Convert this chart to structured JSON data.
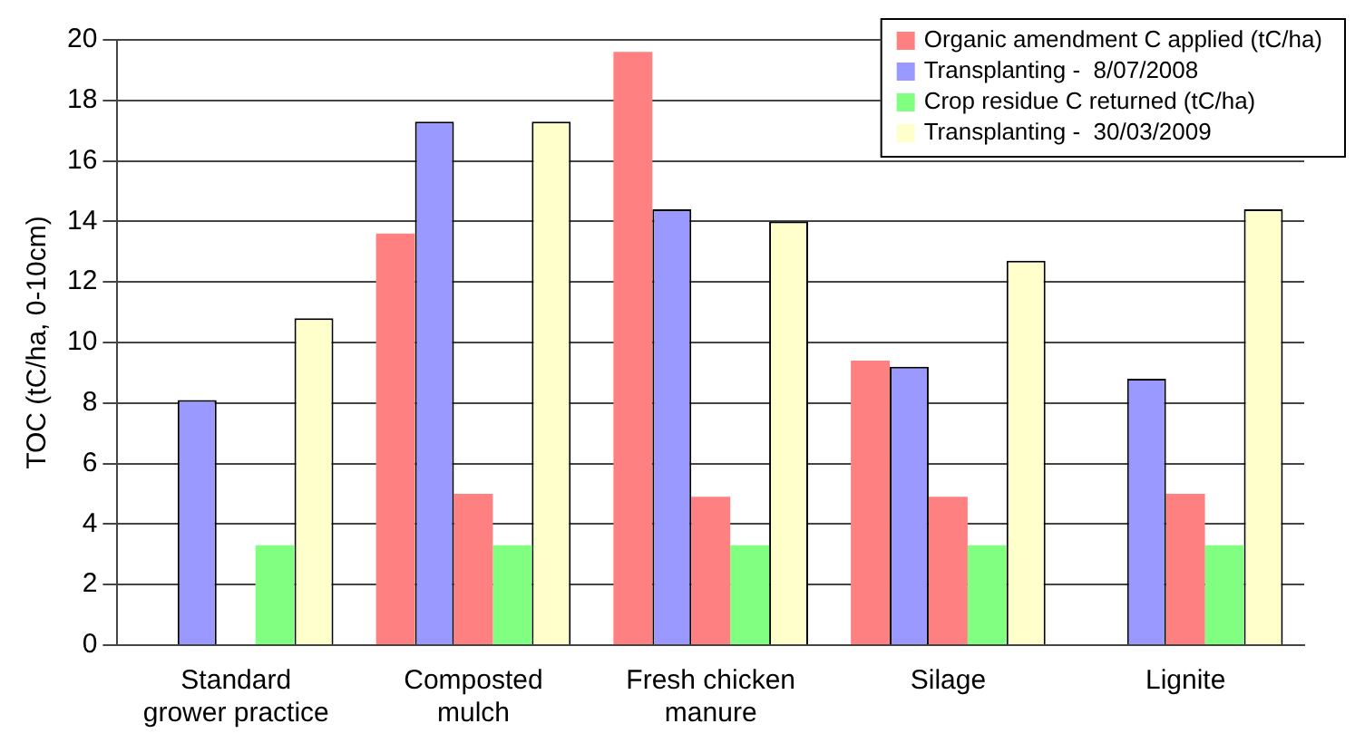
{
  "chart_data": {
    "type": "bar",
    "ylabel": "TOC (tC/ha, 0-10cm)",
    "categories": [
      "Standard grower practice",
      "Composted mulch",
      "Fresh chicken manure",
      "Silage",
      "Lignite"
    ],
    "series": [
      {
        "name": "Organic amendment C applied (tC/ha)",
        "color": "#ff8080",
        "values": [
          null,
          13.6,
          19.6,
          9.4,
          null
        ]
      },
      {
        "name": "Transplanting -  8/07/2008",
        "color": "#9999ff",
        "values": [
          8.1,
          17.3,
          14.4,
          9.2,
          8.8
        ]
      },
      {
        "color": "#ff8080",
        "values": [
          null,
          5.0,
          4.9,
          4.9,
          5.0
        ]
      },
      {
        "name": "Crop residue C returned (tC/ha)",
        "color": "#80ff80",
        "values": [
          3.3,
          3.3,
          3.3,
          3.3,
          3.3
        ]
      },
      {
        "name": "Transplanting -  30/03/2009",
        "color": "#ffffcc",
        "values": [
          10.8,
          17.3,
          14.0,
          12.7,
          14.4
        ]
      }
    ],
    "ylim": [
      0,
      20
    ],
    "yticks": [
      0,
      2,
      4,
      6,
      8,
      10,
      12,
      14,
      16,
      18,
      20
    ],
    "grid": "y",
    "legend": "top right"
  }
}
